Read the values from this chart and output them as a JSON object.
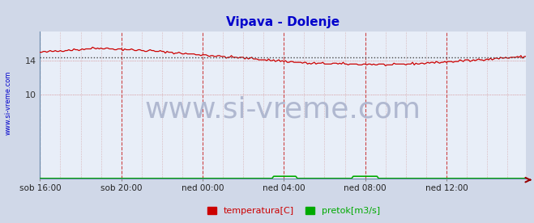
{
  "title": "Vipava - Dolenje",
  "title_color": "#0000cc",
  "bg_color": "#d0d8e8",
  "plot_bg_color": "#e8eef8",
  "x_labels": [
    "sob 16:00",
    "sob 20:00",
    "ned 00:00",
    "ned 04:00",
    "ned 08:00",
    "ned 12:00"
  ],
  "x_ticks_pos": [
    0,
    48,
    96,
    144,
    192,
    240
  ],
  "total_points": 288,
  "y_ticks": [
    14,
    10
  ],
  "ylim": [
    0,
    17.5
  ],
  "watermark_text": "www.si-vreme.com",
  "watermark_color": "#b0b8d0",
  "watermark_fontsize": 26,
  "sidebar_text": "www.si-vreme.com",
  "sidebar_color": "#0000cc",
  "legend_temp_color": "#cc0000",
  "legend_flow_color": "#00aa00",
  "legend_temp_label": "temperatura[C]",
  "legend_flow_label": "pretok[m3/s]",
  "avg_line_color": "#444444",
  "avg_line_value": 14.35,
  "temp_start": 15.0,
  "temp_peak": 15.5,
  "temp_end": 14.5,
  "temp_min": 13.7,
  "flow_spike1_start": 138,
  "flow_spike1_end": 152,
  "flow_spike1_val": 0.25,
  "flow_spike2_start": 185,
  "flow_spike2_end": 200,
  "flow_spike2_val": 0.25
}
